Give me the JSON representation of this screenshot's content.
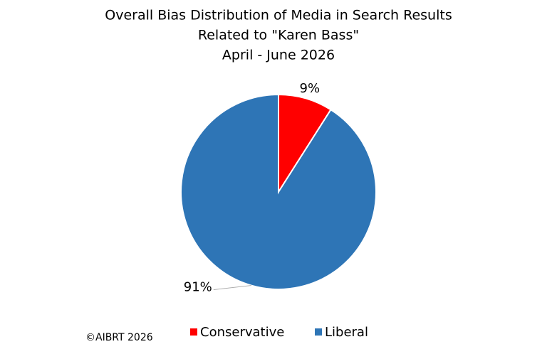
{
  "chart_data": {
    "type": "pie",
    "title": [
      "Overall Bias Distribution of Media in Search Results",
      "Related to \"Karen Bass\"",
      "April - June 2026"
    ],
    "categories": [
      "Conservative",
      "Liberal"
    ],
    "values": [
      9,
      91
    ],
    "value_labels": [
      "9%",
      "91%"
    ],
    "colors": [
      "#ff0000",
      "#2e75b6"
    ],
    "legend": "bottom",
    "footnote": "©AIBRT 2026"
  }
}
